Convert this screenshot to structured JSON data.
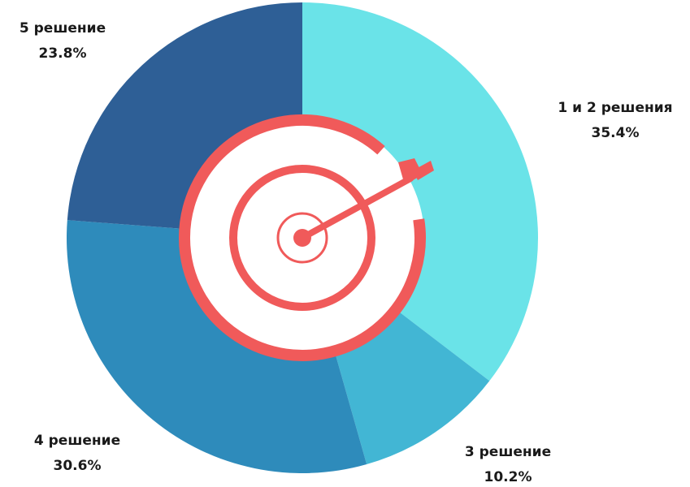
{
  "chart_data": {
    "type": "pie",
    "categories": [
      "1 и 2 решения",
      "3 решение",
      "4 решение",
      "5 решение"
    ],
    "values": [
      35.4,
      10.2,
      30.6,
      23.8
    ],
    "value_labels": [
      "35.4%",
      "10.2%",
      "30.6%",
      "23.8%"
    ],
    "colors": [
      "#6ae3e8",
      "#42b6d4",
      "#2e8bbb",
      "#2e5f96"
    ]
  }
}
